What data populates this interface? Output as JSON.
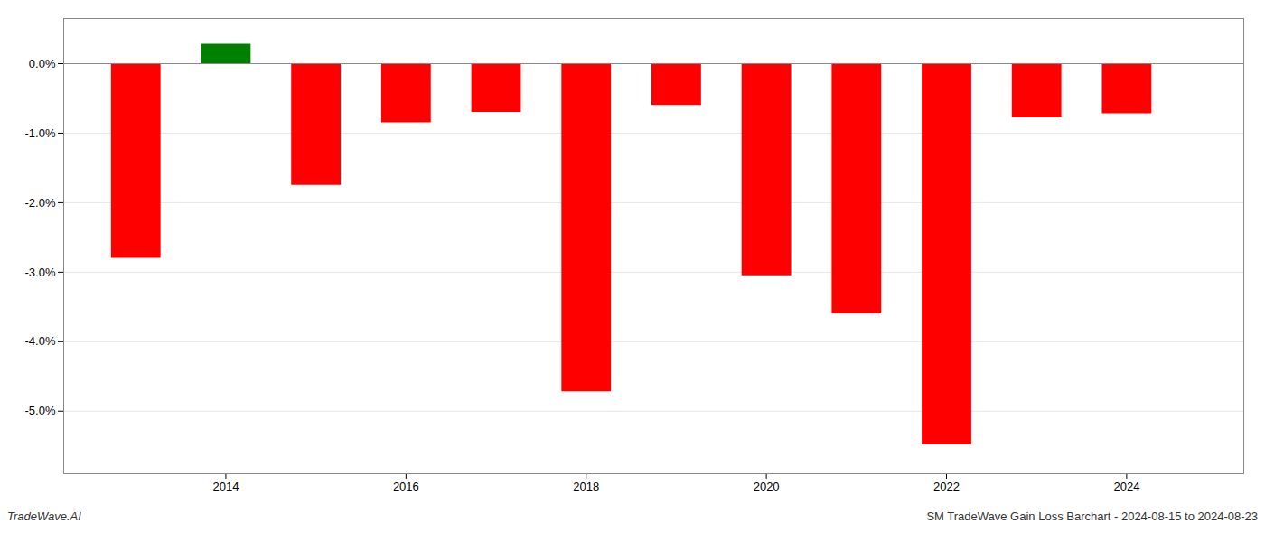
{
  "chart_data": {
    "type": "bar",
    "title": "SM TradeWave Gain Loss Barchart - 2024-08-15 to 2024-08-23",
    "annotations": [
      "TradeWave.AI"
    ],
    "x": [
      2013,
      2014,
      2015,
      2016,
      2017,
      2018,
      2019,
      2020,
      2021,
      2022,
      2023,
      2024
    ],
    "values": [
      -2.8,
      0.28,
      -1.75,
      -0.85,
      -0.7,
      -4.72,
      -0.6,
      -3.05,
      -3.6,
      -5.48,
      -0.78,
      -0.72
    ],
    "colors": [
      "#ff0000",
      "#008000",
      "#ff0000",
      "#ff0000",
      "#ff0000",
      "#ff0000",
      "#ff0000",
      "#ff0000",
      "#ff0000",
      "#ff0000",
      "#ff0000",
      "#ff0000"
    ],
    "xlim": [
      2012.2,
      2025.3
    ],
    "xticks": [
      2014,
      2016,
      2018,
      2020,
      2022,
      2024
    ],
    "ylim": [
      -5.9,
      0.65
    ],
    "yticks": [
      {
        "value": 0.0,
        "label": "0.0%"
      },
      {
        "value": -1.0,
        "label": "-1.0%"
      },
      {
        "value": -2.0,
        "label": "-2.0%"
      },
      {
        "value": -3.0,
        "label": "-3.0%"
      },
      {
        "value": -4.0,
        "label": "-4.0%"
      },
      {
        "value": -5.0,
        "label": "-5.0%"
      }
    ],
    "grid": true
  }
}
